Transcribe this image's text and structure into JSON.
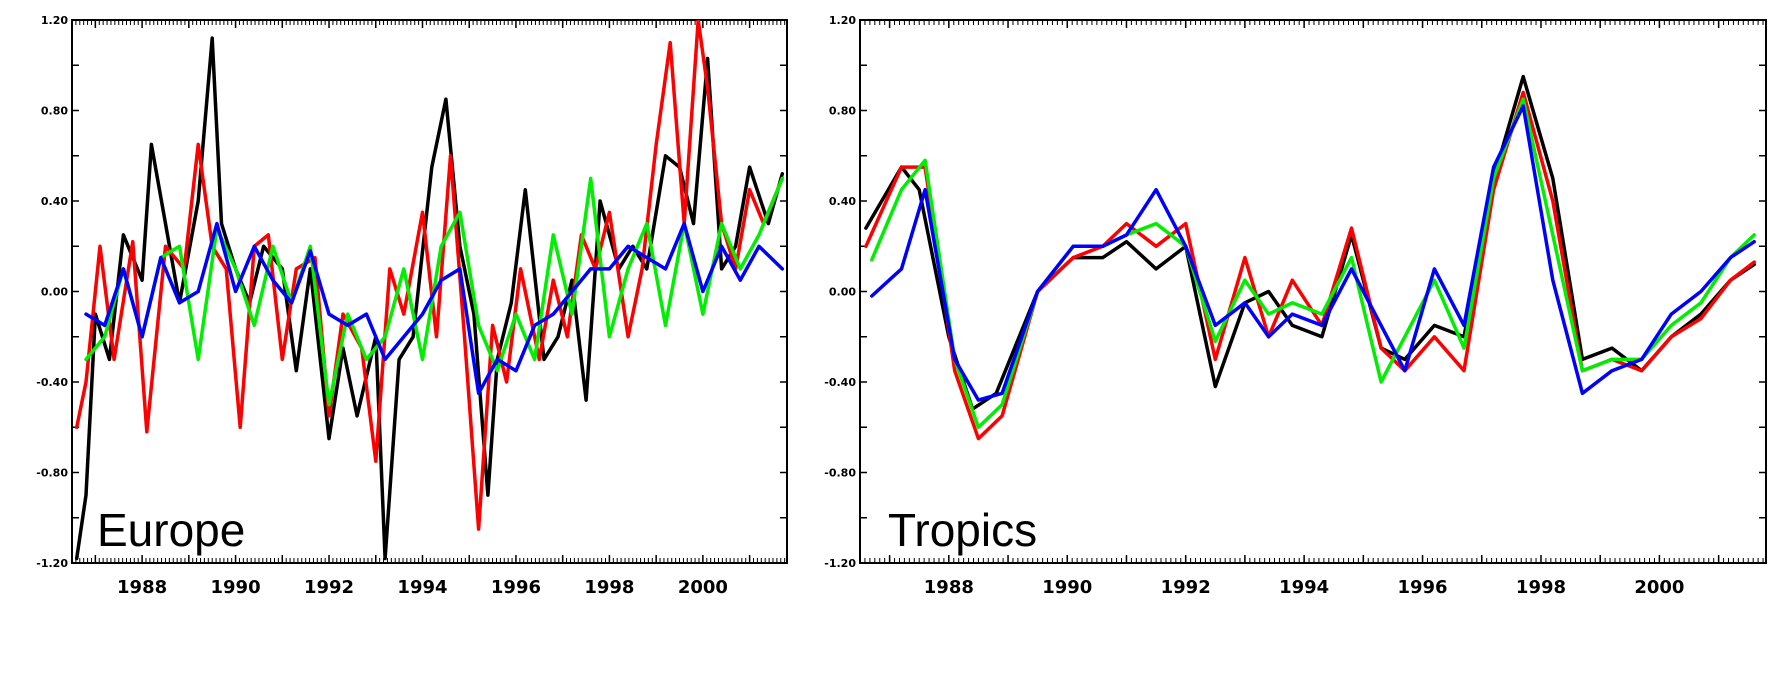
{
  "chart_data": [
    {
      "type": "line",
      "annotation": "Europe",
      "xlim": [
        1986.5,
        2001.8
      ],
      "ylim": [
        -1.2,
        1.2
      ],
      "yticks": [
        -1.2,
        -0.8,
        -0.4,
        0.0,
        0.4,
        0.8,
        1.2
      ],
      "ytick_labels": [
        "-1.20",
        "-0.80",
        "-0.40",
        "0.00",
        "0.40",
        "0.80",
        "1.20"
      ],
      "xticks": [
        1988,
        1990,
        1992,
        1994,
        1996,
        1998,
        2000
      ],
      "xtick_labels": [
        "1988",
        "1990",
        "1992",
        "1994",
        "1996",
        "1998",
        "2000"
      ],
      "series": [
        {
          "color": "#000000",
          "x": [
            1986.6,
            1986.8,
            1987,
            1987.3,
            1987.6,
            1988,
            1988.2,
            1988.5,
            1988.8,
            1989.2,
            1989.5,
            1989.7,
            1990,
            1990.3,
            1990.6,
            1991,
            1991.3,
            1991.6,
            1992,
            1992.3,
            1992.6,
            1993,
            1993.2,
            1993.5,
            1993.8,
            1994.2,
            1994.5,
            1994.8,
            1995.1,
            1995.4,
            1995.6,
            1995.9,
            1996.2,
            1996.6,
            1996.9,
            1997.2,
            1997.5,
            1997.8,
            1998.2,
            1998.5,
            1998.8,
            1999.2,
            1999.5,
            1999.8,
            2000.1,
            2000.4,
            2000.7,
            2001,
            2001.4,
            2001.7
          ],
          "y": [
            -1.18,
            -0.9,
            -0.1,
            -0.3,
            0.25,
            0.05,
            0.65,
            0.3,
            -0.05,
            0.4,
            1.12,
            0.3,
            0.1,
            -0.05,
            0.2,
            0.1,
            -0.35,
            0.1,
            -0.65,
            -0.25,
            -0.55,
            -0.2,
            -1.18,
            -0.3,
            -0.2,
            0.55,
            0.85,
            0.2,
            -0.1,
            -0.9,
            -0.3,
            -0.05,
            0.45,
            -0.3,
            -0.2,
            0.05,
            -0.48,
            0.4,
            0.1,
            0.2,
            0.1,
            0.6,
            0.55,
            0.3,
            1.03,
            0.1,
            0.2,
            0.55,
            0.3,
            0.52
          ]
        },
        {
          "color": "#ff0000",
          "x": [
            1986.6,
            1986.8,
            1987.1,
            1987.4,
            1987.8,
            1988.1,
            1988.5,
            1988.9,
            1989.2,
            1989.5,
            1989.8,
            1990.1,
            1990.4,
            1990.7,
            1991,
            1991.3,
            1991.7,
            1992,
            1992.3,
            1992.7,
            1993,
            1993.3,
            1993.6,
            1994,
            1994.3,
            1994.6,
            1994.9,
            1995.2,
            1995.5,
            1995.8,
            1996.1,
            1996.5,
            1996.8,
            1997.1,
            1997.4,
            1997.7,
            1998,
            1998.4,
            1998.7,
            1999,
            1999.3,
            1999.6,
            1999.9,
            2000.1,
            2000.4,
            2000.7,
            2001,
            2001.3,
            2001.7
          ],
          "y": [
            -0.6,
            -0.4,
            0.2,
            -0.3,
            0.22,
            -0.62,
            0.2,
            0.1,
            0.65,
            0.2,
            0.1,
            -0.6,
            0.2,
            0.25,
            -0.3,
            0.1,
            0.15,
            -0.55,
            -0.1,
            -0.25,
            -0.75,
            0.1,
            -0.1,
            0.35,
            -0.2,
            0.6,
            -0.2,
            -1.05,
            -0.15,
            -0.4,
            0.1,
            -0.3,
            0.05,
            -0.2,
            0.25,
            0.1,
            0.35,
            -0.2,
            0.1,
            0.65,
            1.1,
            0.3,
            1.2,
            0.9,
            0.3,
            0.1,
            0.45,
            0.3,
            0.5
          ]
        },
        {
          "color": "#00ee00",
          "x": [
            1986.8,
            1987.2,
            1987.6,
            1988,
            1988.4,
            1988.8,
            1989.2,
            1989.6,
            1990,
            1990.4,
            1990.8,
            1991.2,
            1991.6,
            1992,
            1992.4,
            1992.8,
            1993.2,
            1993.6,
            1994,
            1994.4,
            1994.8,
            1995.2,
            1995.6,
            1996,
            1996.4,
            1996.8,
            1997.2,
            1997.6,
            1998,
            1998.4,
            1998.8,
            1999.2,
            1999.6,
            2000,
            2000.4,
            2000.8,
            2001.2,
            2001.7
          ],
          "y": [
            -0.3,
            -0.2,
            0.1,
            -0.2,
            0.15,
            0.2,
            -0.3,
            0.28,
            0.1,
            -0.15,
            0.2,
            -0.05,
            0.2,
            -0.5,
            -0.1,
            -0.3,
            -0.2,
            0.1,
            -0.3,
            0.2,
            0.35,
            -0.15,
            -0.35,
            -0.1,
            -0.3,
            0.25,
            -0.1,
            0.5,
            -0.2,
            0.1,
            0.3,
            -0.15,
            0.3,
            -0.1,
            0.3,
            0.1,
            0.25,
            0.5
          ]
        },
        {
          "color": "#0000ff",
          "x": [
            1986.8,
            1987.2,
            1987.6,
            1988,
            1988.4,
            1988.8,
            1989.2,
            1989.6,
            1990,
            1990.4,
            1990.8,
            1991.2,
            1991.6,
            1992,
            1992.4,
            1992.8,
            1993.2,
            1993.6,
            1994,
            1994.4,
            1994.8,
            1995.2,
            1995.6,
            1996,
            1996.4,
            1996.8,
            1997.2,
            1997.6,
            1998,
            1998.4,
            1998.8,
            1999.2,
            1999.6,
            2000,
            2000.4,
            2000.8,
            2001.2,
            2001.7
          ],
          "y": [
            -0.1,
            -0.15,
            0.1,
            -0.2,
            0.15,
            -0.05,
            0.0,
            0.3,
            0.0,
            0.2,
            0.05,
            -0.05,
            0.18,
            -0.1,
            -0.15,
            -0.1,
            -0.3,
            -0.2,
            -0.1,
            0.05,
            0.1,
            -0.45,
            -0.3,
            -0.35,
            -0.15,
            -0.1,
            0.0,
            0.1,
            0.1,
            0.2,
            0.15,
            0.1,
            0.3,
            0.0,
            0.2,
            0.05,
            0.2,
            0.1
          ]
        }
      ]
    },
    {
      "type": "line",
      "annotation": "Tropics",
      "xlim": [
        1986.5,
        2001.8
      ],
      "ylim": [
        -1.2,
        1.2
      ],
      "yticks": [
        -1.2,
        -0.8,
        -0.4,
        0.0,
        0.4,
        0.8,
        1.2
      ],
      "ytick_labels": [
        "-1.20",
        "-0.80",
        "-0.40",
        "0.00",
        "0.40",
        "0.80",
        "1.20"
      ],
      "xticks": [
        1988,
        1990,
        1992,
        1994,
        1996,
        1998,
        2000
      ],
      "xtick_labels": [
        "1988",
        "1990",
        "1992",
        "1994",
        "1996",
        "1998",
        "2000"
      ],
      "series": [
        {
          "color": "#000000",
          "x": [
            1986.6,
            1987.2,
            1987.5,
            1988,
            1988.4,
            1988.8,
            1989.5,
            1990.1,
            1990.6,
            1991,
            1991.5,
            1992,
            1992.5,
            1993,
            1993.4,
            1993.8,
            1994.3,
            1994.8,
            1995.3,
            1995.7,
            1996.2,
            1996.7,
            1997.2,
            1997.7,
            1998.2,
            1998.7,
            1999.2,
            1999.7,
            2000.2,
            2000.7,
            2001.2,
            2001.6
          ],
          "y": [
            0.28,
            0.55,
            0.45,
            -0.2,
            -0.52,
            -0.45,
            0.0,
            0.15,
            0.15,
            0.22,
            0.1,
            0.2,
            -0.42,
            -0.05,
            0.0,
            -0.15,
            -0.2,
            0.25,
            -0.25,
            -0.3,
            -0.15,
            -0.2,
            0.5,
            0.95,
            0.5,
            -0.3,
            -0.25,
            -0.35,
            -0.2,
            -0.1,
            0.05,
            0.12
          ]
        },
        {
          "color": "#ff0000",
          "x": [
            1986.6,
            1987.2,
            1987.6,
            1988.1,
            1988.5,
            1988.9,
            1989.5,
            1990.1,
            1990.6,
            1991,
            1991.5,
            1992,
            1992.5,
            1993,
            1993.4,
            1993.8,
            1994.3,
            1994.8,
            1995.3,
            1995.7,
            1996.2,
            1996.7,
            1997.2,
            1997.7,
            1998.2,
            1998.7,
            1999.2,
            1999.7,
            2000.2,
            2000.7,
            2001.2,
            2001.6
          ],
          "y": [
            0.2,
            0.55,
            0.55,
            -0.35,
            -0.65,
            -0.55,
            0.0,
            0.15,
            0.2,
            0.3,
            0.2,
            0.3,
            -0.3,
            0.15,
            -0.2,
            0.05,
            -0.15,
            0.28,
            -0.25,
            -0.35,
            -0.2,
            -0.35,
            0.45,
            0.88,
            0.4,
            -0.35,
            -0.3,
            -0.35,
            -0.2,
            -0.12,
            0.05,
            0.13
          ]
        },
        {
          "color": "#00ee00",
          "x": [
            1986.7,
            1987.2,
            1987.6,
            1988.1,
            1988.5,
            1988.9,
            1989.5,
            1990.1,
            1990.6,
            1991,
            1991.5,
            1992,
            1992.5,
            1993,
            1993.4,
            1993.8,
            1994.3,
            1994.8,
            1995.3,
            1995.7,
            1996.2,
            1996.7,
            1997.2,
            1997.7,
            1998.2,
            1998.7,
            1999.2,
            1999.7,
            2000.2,
            2000.7,
            2001.2,
            2001.6
          ],
          "y": [
            0.14,
            0.45,
            0.58,
            -0.3,
            -0.6,
            -0.5,
            0.0,
            0.2,
            0.2,
            0.25,
            0.3,
            0.2,
            -0.22,
            0.05,
            -0.1,
            -0.05,
            -0.1,
            0.15,
            -0.4,
            -0.2,
            0.05,
            -0.25,
            0.5,
            0.85,
            0.25,
            -0.35,
            -0.3,
            -0.3,
            -0.15,
            -0.05,
            0.15,
            0.25
          ]
        },
        {
          "color": "#0000ff",
          "x": [
            1986.7,
            1987.2,
            1987.6,
            1988.1,
            1988.5,
            1988.9,
            1989.5,
            1990.1,
            1990.6,
            1991,
            1991.5,
            1992,
            1992.5,
            1993,
            1993.4,
            1993.8,
            1994.3,
            1994.8,
            1995.3,
            1995.7,
            1996.2,
            1996.7,
            1997.2,
            1997.7,
            1998.2,
            1998.7,
            1999.2,
            1999.7,
            2000.2,
            2000.7,
            2001.2,
            2001.6
          ],
          "y": [
            -0.02,
            0.1,
            0.45,
            -0.3,
            -0.48,
            -0.45,
            0.0,
            0.2,
            0.2,
            0.25,
            0.45,
            0.2,
            -0.15,
            -0.05,
            -0.2,
            -0.1,
            -0.15,
            0.1,
            -0.15,
            -0.35,
            0.1,
            -0.15,
            0.55,
            0.82,
            0.05,
            -0.45,
            -0.35,
            -0.3,
            -0.1,
            0.0,
            0.15,
            0.22
          ]
        }
      ]
    }
  ]
}
